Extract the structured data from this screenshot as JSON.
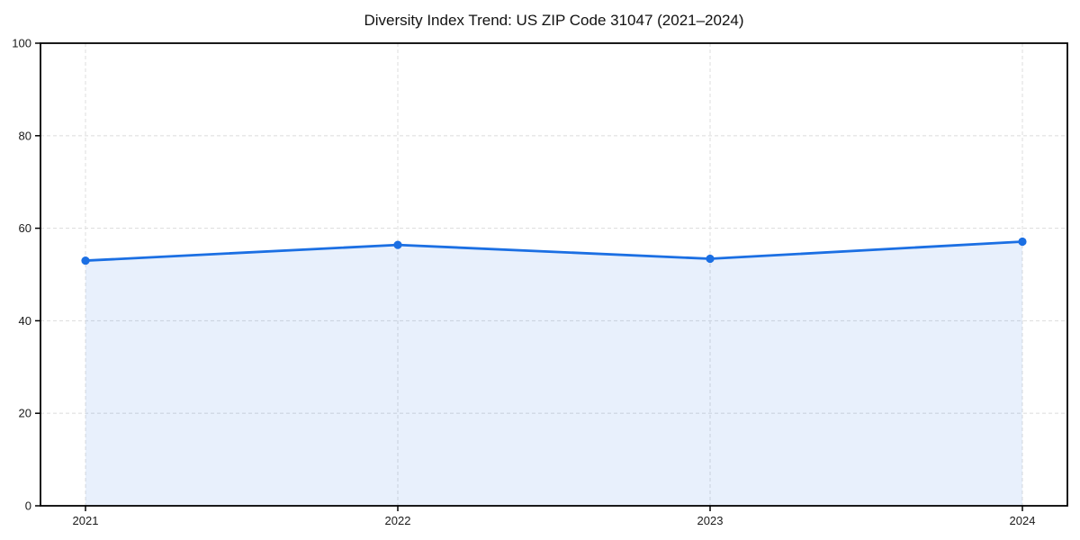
{
  "chart_data": {
    "type": "area",
    "title": "Diversity Index Trend: US ZIP Code 31047 (2021–2024)",
    "categories": [
      "2021",
      "2022",
      "2023",
      "2024"
    ],
    "series": [
      {
        "name": "Diversity Index",
        "values": [
          53.0,
          56.4,
          53.4,
          57.1
        ]
      }
    ],
    "xlabel": "",
    "ylabel": "",
    "ylim": [
      0,
      100
    ],
    "yticks": [
      0,
      20,
      40,
      60,
      80,
      100
    ],
    "grid": true,
    "grid_style": "dashed",
    "legend_position": "none",
    "marker": "circle",
    "colors": {
      "line": "#1b6fe3",
      "marker": "#1b6fe3",
      "fill": "rgba(27,111,227,0.10)",
      "grid": "#e0e0e0",
      "axis": "#000000",
      "tick_text": "#1a1a1a",
      "background": "#ffffff"
    }
  }
}
